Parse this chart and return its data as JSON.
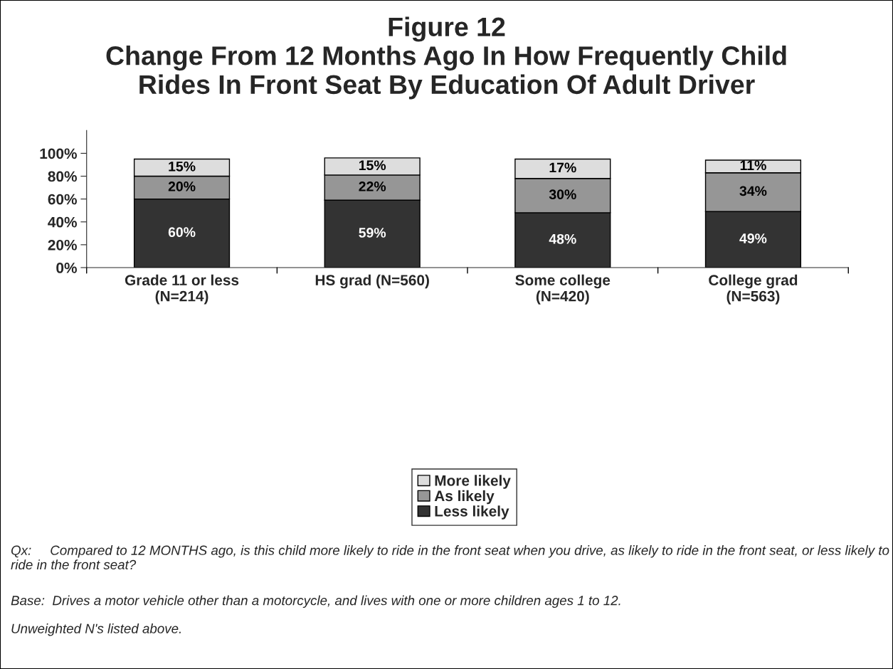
{
  "chart_data": {
    "type": "bar",
    "stacked": true,
    "title": "Figure 12\nChange From 12 Months Ago In How Frequently Child\nRides In Front Seat By Education Of Adult Driver",
    "categories": [
      "Grade 11 or less\n(N=214)",
      "HS grad (N=560)",
      "Some college\n(N=420)",
      "College grad\n(N=563)"
    ],
    "series": [
      {
        "name": "Less likely",
        "color": "#333333",
        "values": [
          60,
          59,
          48,
          49
        ],
        "value_labels": [
          "60%",
          "59%",
          "48%",
          "49%"
        ]
      },
      {
        "name": "As likely",
        "color": "#969696",
        "values": [
          20,
          22,
          30,
          34
        ],
        "value_labels": [
          "20%",
          "22%",
          "30%",
          "34%"
        ]
      },
      {
        "name": "More likely",
        "color": "#dddddd",
        "values": [
          15,
          15,
          17,
          11
        ],
        "value_labels": [
          "15%",
          "15%",
          "17%",
          "11%"
        ]
      }
    ],
    "ylim": [
      0,
      120
    ],
    "yticks": [
      {
        "value": 0,
        "label": "0%"
      },
      {
        "value": 20,
        "label": "20%"
      },
      {
        "value": 40,
        "label": "40%"
      },
      {
        "value": 60,
        "label": "60%"
      },
      {
        "value": 80,
        "label": "80%"
      },
      {
        "value": 100,
        "label": "100%"
      }
    ],
    "data_labels": true,
    "grid": false,
    "legend": "bottom",
    "annotations": [
      "Qx:\tCompared to 12 MONTHS ago, is this child more likely to ride in the front seat when you drive, as likely to ride in the front seat, or less likely to ride in the front seat?",
      "Base:  Drives a motor vehicle other than a motorcycle, and lives with one or more children ages 1 to 12.",
      "Unweighted N's listed above."
    ]
  }
}
